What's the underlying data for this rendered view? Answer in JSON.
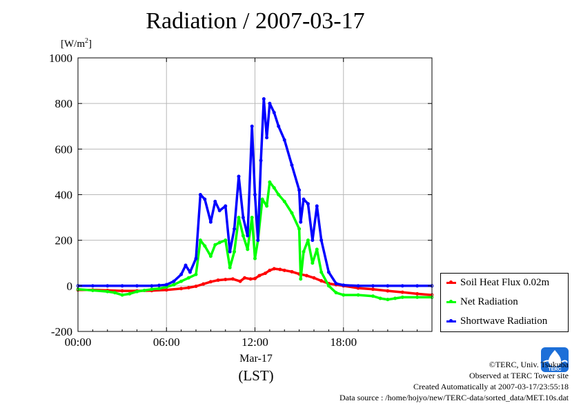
{
  "chart_data": {
    "type": "line",
    "title": "Radiation / 2007-03-17",
    "ylabel_prefix": "[W/m",
    "ylabel_sup": "2",
    "ylabel_suffix": "]",
    "ylim": [
      -200,
      1000
    ],
    "yticks": [
      "-200",
      "0",
      "200",
      "400",
      "600",
      "800",
      "1000"
    ],
    "yticks_values": [
      -200,
      0,
      200,
      400,
      600,
      800,
      1000
    ],
    "xlim": [
      0,
      24
    ],
    "xticks": [
      "00:00",
      "06:00",
      "12:00",
      "18:00"
    ],
    "xticks_values": [
      0,
      6,
      12,
      18
    ],
    "xdate": "Mar-17",
    "xlabel": "(LST)",
    "grid": true,
    "legend_position": "bottom-right",
    "series": [
      {
        "name": "Soil Heat Flux 0.02m",
        "color": "#ff0000",
        "x": [
          0,
          1,
          2,
          3,
          4,
          5,
          6,
          7,
          7.5,
          8,
          8.5,
          9,
          9.5,
          10,
          10.5,
          11,
          11.3,
          11.7,
          12,
          12.3,
          12.7,
          13,
          13.3,
          13.7,
          14,
          14.5,
          15,
          15.5,
          16,
          16.5,
          17,
          17.5,
          18,
          19,
          20,
          21,
          22,
          23,
          24
        ],
        "y": [
          -18,
          -18,
          -20,
          -22,
          -22,
          -21,
          -18,
          -12,
          -8,
          -2,
          8,
          18,
          25,
          28,
          30,
          20,
          35,
          30,
          32,
          45,
          55,
          68,
          75,
          72,
          68,
          62,
          52,
          45,
          35,
          22,
          10,
          5,
          0,
          -10,
          -15,
          -22,
          -28,
          -35,
          -40
        ]
      },
      {
        "name": "Net Radiation",
        "color": "#00ff00",
        "x": [
          0,
          1,
          2,
          2.5,
          3,
          3.5,
          4,
          4.5,
          5,
          5.5,
          6,
          6.5,
          7,
          7.5,
          8,
          8.3,
          8.6,
          9,
          9.3,
          9.6,
          10,
          10.3,
          10.6,
          10.9,
          11.2,
          11.5,
          11.8,
          12,
          12.2,
          12.5,
          12.8,
          13,
          13.3,
          13.6,
          14,
          14.5,
          15,
          15.1,
          15.3,
          15.6,
          15.9,
          16.2,
          16.5,
          17,
          17.5,
          18,
          19,
          20,
          20.5,
          21,
          21.5,
          22,
          23,
          24
        ],
        "y": [
          -15,
          -20,
          -25,
          -30,
          -40,
          -35,
          -25,
          -20,
          -15,
          -12,
          -5,
          5,
          20,
          35,
          50,
          200,
          175,
          130,
          180,
          190,
          200,
          80,
          150,
          300,
          220,
          160,
          300,
          120,
          200,
          380,
          350,
          455,
          430,
          400,
          370,
          320,
          250,
          30,
          150,
          200,
          100,
          160,
          60,
          0,
          -30,
          -40,
          -40,
          -45,
          -55,
          -60,
          -55,
          -50,
          -50,
          -50
        ]
      },
      {
        "name": "Shortwave Radiation",
        "color": "#0000ff",
        "x": [
          0,
          1,
          2,
          3,
          4,
          5,
          5.5,
          6,
          6.5,
          7,
          7.3,
          7.6,
          8,
          8.3,
          8.6,
          9,
          9.3,
          9.6,
          10,
          10.3,
          10.6,
          10.9,
          11.2,
          11.5,
          11.8,
          12,
          12.2,
          12.4,
          12.6,
          12.8,
          13,
          13.3,
          13.6,
          14,
          14.5,
          15,
          15.1,
          15.3,
          15.6,
          15.9,
          16.2,
          16.5,
          17,
          17.5,
          18,
          19,
          20,
          21,
          22,
          23,
          24
        ],
        "y": [
          0,
          0,
          0,
          0,
          0,
          0,
          2,
          5,
          20,
          50,
          90,
          60,
          120,
          400,
          380,
          280,
          370,
          330,
          350,
          150,
          250,
          480,
          300,
          220,
          700,
          400,
          200,
          550,
          820,
          650,
          800,
          760,
          700,
          640,
          530,
          420,
          280,
          380,
          360,
          200,
          350,
          200,
          60,
          10,
          3,
          0,
          0,
          0,
          0,
          0,
          0
        ]
      }
    ]
  },
  "credits": {
    "copyright": "©TERC, Univ. Tsukuba",
    "observed": "Observed at TERC Tower site",
    "created": "Created Automatically at 2007-03-17/23:55:18",
    "source": "Data source : /home/hojyo/new/TERC-data/sorted_data/MET.10s.dat"
  },
  "logo": {
    "label": "TERC",
    "color": "#1d6fd8"
  }
}
